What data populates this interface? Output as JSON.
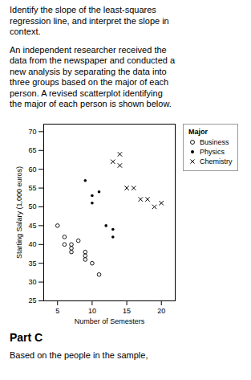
{
  "chart_data": {
    "type": "scatter",
    "annotations": [
      [
        "Identify the slope of the least-squares",
        "regression line, and interpret the slope in",
        "context."
      ],
      [
        "An independent researcher received the",
        "data from the newspaper and conducted a",
        "new analysis by separating the data into",
        "three groups based on the major of each",
        "person. A revised scatterplot identifying",
        "the major of each person is shown below."
      ]
    ],
    "caption_title": "Part C",
    "caption": "Based on the people in the sample,",
    "xlabel": "Number of Semesters",
    "ylabel": "Starting Salary (1,000 euros)",
    "xlim": [
      3,
      22
    ],
    "ylim": [
      25,
      72
    ],
    "xticks": [
      5,
      10,
      15,
      20
    ],
    "yticks": [
      25,
      30,
      35,
      40,
      45,
      50,
      55,
      60,
      65,
      70
    ],
    "grid": false,
    "legend": "right",
    "legend_title": "Major",
    "series": [
      {
        "name": "Business",
        "marker": "open_circle",
        "color": "#000000",
        "values": [
          [
            5,
            45
          ],
          [
            6,
            42
          ],
          [
            6,
            40
          ],
          [
            7,
            40
          ],
          [
            7,
            39
          ],
          [
            7,
            38
          ],
          [
            8,
            41
          ],
          [
            9,
            38
          ],
          [
            9,
            37
          ],
          [
            9,
            36
          ],
          [
            10,
            35
          ],
          [
            11,
            32
          ]
        ]
      },
      {
        "name": "Physics",
        "marker": "dot",
        "color": "#000000",
        "values": [
          [
            9,
            57
          ],
          [
            10,
            51
          ],
          [
            10,
            53
          ],
          [
            11,
            54
          ],
          [
            12,
            45
          ],
          [
            13,
            44
          ],
          [
            13,
            42
          ]
        ]
      },
      {
        "name": "Chemistry",
        "marker": "x",
        "color": "#000000",
        "values": [
          [
            13,
            62
          ],
          [
            14,
            64
          ],
          [
            14,
            61
          ],
          [
            15,
            55
          ],
          [
            16,
            55
          ],
          [
            17,
            52
          ],
          [
            18,
            52
          ],
          [
            19,
            50
          ],
          [
            20,
            51
          ]
        ]
      }
    ]
  }
}
